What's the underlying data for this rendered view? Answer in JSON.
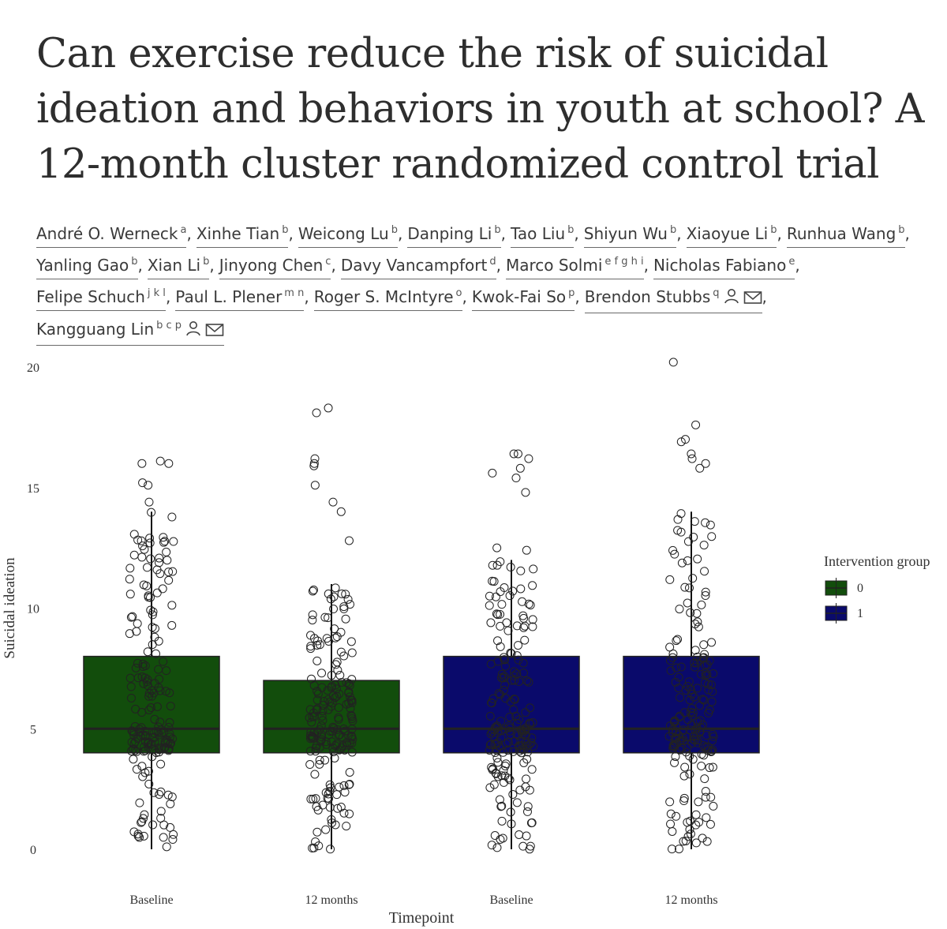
{
  "title": "Can exercise reduce the risk of suicidal ideation and behaviors in youth at school? A 12-month cluster randomized control trial",
  "authors": [
    {
      "name": "André O. Werneck",
      "aff": "a"
    },
    {
      "name": "Xinhe Tian",
      "aff": "b"
    },
    {
      "name": "Weicong Lu",
      "aff": "b"
    },
    {
      "name": "Danping Li",
      "aff": "b"
    },
    {
      "name": "Tao Liu",
      "aff": "b"
    },
    {
      "name": "Shiyun Wu",
      "aff": "b"
    },
    {
      "name": "Xiaoyue Li",
      "aff": "b"
    },
    {
      "name": "Runhua Wang",
      "aff": "b"
    },
    {
      "name": "Yanling Gao",
      "aff": "b"
    },
    {
      "name": "Xian Li",
      "aff": "b"
    },
    {
      "name": "Jinyong Chen",
      "aff": "c"
    },
    {
      "name": "Davy Vancampfort",
      "aff": "d"
    },
    {
      "name": "Marco Solmi",
      "aff": "e f g h i"
    },
    {
      "name": "Nicholas Fabiano",
      "aff": "e"
    },
    {
      "name": "Felipe Schuch",
      "aff": "j k l"
    },
    {
      "name": "Paul L. Plener",
      "aff": "m n"
    },
    {
      "name": "Roger S. McIntyre",
      "aff": "o"
    },
    {
      "name": "Kwok-Fai So",
      "aff": "p"
    },
    {
      "name": "Brendon Stubbs",
      "aff": "q",
      "icons": [
        "person-icon",
        "mail-icon"
      ]
    },
    {
      "name": "Kangguang Lin",
      "aff": "b c p",
      "icons": [
        "person-icon",
        "mail-icon"
      ]
    }
  ],
  "chart_data": {
    "type": "box",
    "xlabel": "Timepoint",
    "ylabel": "Suicidal ideation",
    "ylim": [
      0,
      20
    ],
    "yticks": [
      0,
      5,
      10,
      15,
      20
    ],
    "categories": [
      "Baseline",
      "12 months",
      "Baseline",
      "12 months"
    ],
    "legend": {
      "title": "Intervention group",
      "position": "right",
      "entries": [
        "0",
        "1"
      ]
    },
    "colors": {
      "0": "#124d0c",
      "1": "#0a0a6b"
    },
    "boxes": [
      {
        "group": "0",
        "timepoint": "Baseline",
        "whisker_low": 0,
        "q1": 4,
        "median": 5,
        "q3": 8,
        "whisker_high": 14
      },
      {
        "group": "0",
        "timepoint": "12 months",
        "whisker_low": 0,
        "q1": 4,
        "median": 5,
        "q3": 7,
        "whisker_high": 11
      },
      {
        "group": "1",
        "timepoint": "Baseline",
        "whisker_low": 0,
        "q1": 4,
        "median": 5,
        "q3": 8,
        "whisker_high": 12
      },
      {
        "group": "1",
        "timepoint": "12 months",
        "whisker_low": 0,
        "q1": 4,
        "median": 5,
        "q3": 8,
        "whisker_high": 14
      }
    ],
    "outliers": [
      [
        14.4,
        15.1,
        15.2,
        16.0,
        16.0,
        16.1
      ],
      [
        12.8,
        14.0,
        14.4,
        15.1,
        15.9,
        16.0,
        16.2,
        18.1,
        18.3
      ],
      [
        12.4,
        12.5,
        14.8,
        15.4,
        15.6,
        15.8,
        16.2,
        16.4,
        16.4
      ],
      [
        15.8,
        16.0,
        16.2,
        16.4,
        16.9,
        17.0,
        17.6,
        20.2
      ]
    ]
  }
}
